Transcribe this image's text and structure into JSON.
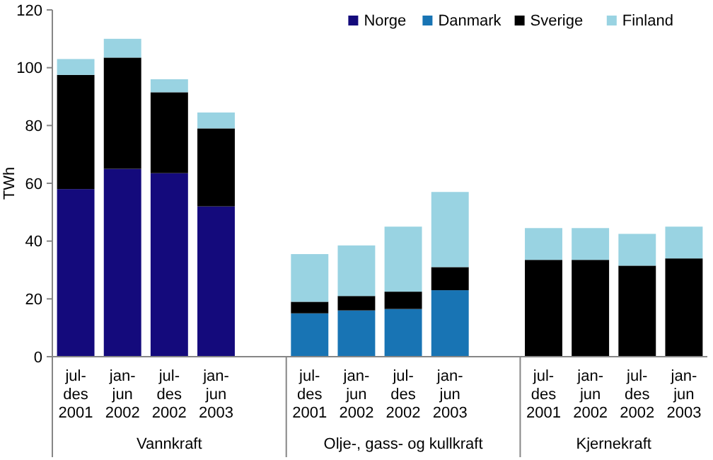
{
  "chart_data": {
    "type": "bar",
    "stacked": true,
    "ylabel": "TWh",
    "ylim": [
      0,
      120
    ],
    "yticks": [
      0,
      20,
      40,
      60,
      80,
      100,
      120
    ],
    "grid": false,
    "legend": "top right",
    "categories": [
      "jul-des 2001",
      "jan-jun 2002",
      "jul-des 2002",
      "jan-jun 2003",
      null,
      "jul-des 2001",
      "jan-jun 2002",
      "jul-des 2002",
      "jan-jun 2003",
      null,
      "jul-des 2001",
      "jan-jun 2002",
      "jul-des 2002",
      "jan-jun 2003"
    ],
    "series": [
      {
        "name": "Norge",
        "color": "#140a7c",
        "values": [
          58,
          65,
          63.5,
          52,
          null,
          0,
          0,
          0,
          0,
          null,
          0,
          0,
          0,
          0
        ]
      },
      {
        "name": "Danmark",
        "color": "#1874b4",
        "values": [
          0,
          0,
          0,
          0,
          null,
          15,
          16,
          16.5,
          23,
          null,
          0,
          0,
          0,
          0
        ]
      },
      {
        "name": "Sverige",
        "color": "#000000",
        "values": [
          39.5,
          38.5,
          28,
          27,
          null,
          4,
          5,
          6,
          8,
          null,
          33.5,
          33.5,
          31.5,
          34
        ]
      },
      {
        "name": "Finland",
        "color": "#99d3e2",
        "values": [
          5.5,
          6.5,
          4.5,
          5.5,
          null,
          16.5,
          17.5,
          22.5,
          26,
          null,
          11,
          11,
          11,
          11
        ]
      }
    ],
    "annotations": [
      "Vannkraft",
      "Olje-, gass- og kullkraft",
      "Kjernekraft"
    ]
  }
}
